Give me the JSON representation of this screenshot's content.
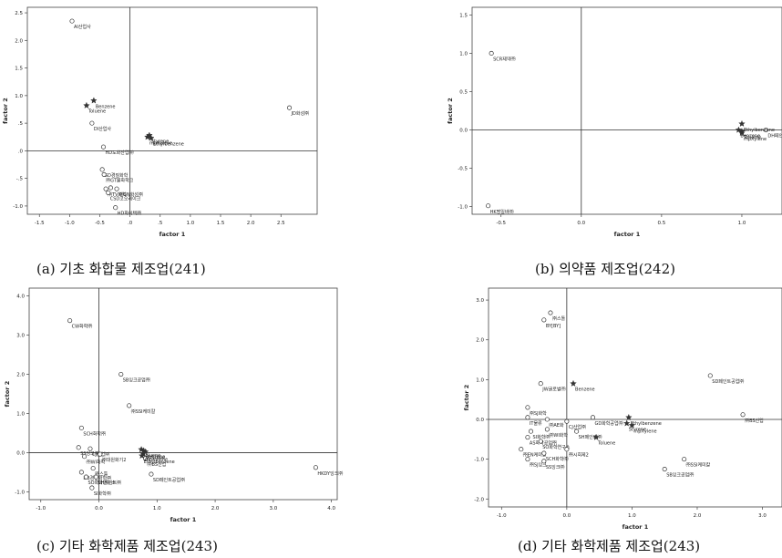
{
  "charts": [
    {
      "id": "a",
      "caption": "(a) 기초 화합물 제조업(241)",
      "chart_data": {
        "type": "scatter",
        "xlabel": "factor 1",
        "ylabel": "factor 2",
        "xlim": [
          -1.7,
          3.1
        ],
        "ylim": [
          -1.15,
          2.6
        ],
        "xticks": [
          -1.5,
          -1.0,
          -0.5,
          0.0,
          0.5,
          1.0,
          1.5,
          2.0,
          2.5
        ],
        "yticks": [
          -1.0,
          -0.5,
          0.0,
          0.5,
          1.0,
          1.5,
          2.0,
          2.5
        ],
        "xtick_labels": [
          "-1.5",
          "-1.0",
          "-0.5",
          ".0",
          ".5",
          "1.0",
          "1.5",
          "2.0",
          "2.5"
        ],
        "ytick_labels": [
          "-1.0",
          "-.5",
          ".0",
          ".5",
          "1.0",
          "1.5",
          "2.0",
          "2.5"
        ],
        "points": [
          {
            "x": -0.96,
            "y": 2.35,
            "marker": "circle",
            "label": "AI산업사"
          },
          {
            "x": -0.63,
            "y": 0.5,
            "marker": "circle",
            "label": "DI산업사"
          },
          {
            "x": -0.44,
            "y": 0.07,
            "marker": "circle",
            "label": "HD도화산업㈜"
          },
          {
            "x": -0.46,
            "y": -0.34,
            "marker": "circle",
            "label": "GD경질화학"
          },
          {
            "x": -0.43,
            "y": -0.43,
            "marker": "circle",
            "label": "㈜GT물화학크"
          },
          {
            "x": -0.4,
            "y": -0.69,
            "marker": "circle",
            "label": "㈜TV화학"
          },
          {
            "x": -0.36,
            "y": -0.76,
            "marker": "circle",
            "label": "CSD코오레이크"
          },
          {
            "x": -0.32,
            "y": -0.67,
            "marker": "circle",
            "label": ""
          },
          {
            "x": -0.22,
            "y": -0.69,
            "marker": "circle",
            "label": "㈜GN화성㈜"
          },
          {
            "x": -0.24,
            "y": -1.03,
            "marker": "circle",
            "label": "HD화이텍㈜"
          },
          {
            "x": 2.64,
            "y": 0.78,
            "marker": "circle",
            "label": "JD화성㈜"
          },
          {
            "x": -0.72,
            "y": 0.82,
            "marker": "star",
            "label": "Toluene"
          },
          {
            "x": -0.6,
            "y": 0.91,
            "marker": "star",
            "label": "Benzene"
          },
          {
            "x": 0.32,
            "y": 0.28,
            "marker": "star",
            "label": "Styrene"
          },
          {
            "x": 0.29,
            "y": 0.25,
            "marker": "star",
            "label": "mpXylene"
          },
          {
            "x": 0.35,
            "y": 0.23,
            "marker": "star",
            "label": "Ethylbenzene"
          }
        ]
      }
    },
    {
      "id": "b",
      "caption": "(b) 의약품 제조업(242)",
      "chart_data": {
        "type": "scatter",
        "xlabel": "factor 1",
        "ylabel": "factor 2",
        "xlim": [
          -0.68,
          1.25
        ],
        "ylim": [
          -1.1,
          1.6
        ],
        "xticks": [
          -0.5,
          0.0,
          0.5,
          1.0
        ],
        "yticks": [
          -1.0,
          -0.5,
          0.0,
          0.5,
          1.0,
          1.5
        ],
        "xtick_labels": [
          "-0.5",
          "0.0",
          "0.5",
          "1.0"
        ],
        "ytick_labels": [
          "-1.0",
          "-0.5",
          "0.0",
          "0.5",
          "1.0",
          "1.5"
        ],
        "points": [
          {
            "x": -0.56,
            "y": 1.0,
            "marker": "circle",
            "label": "SCR제약㈜"
          },
          {
            "x": -0.58,
            "y": -0.99,
            "marker": "circle",
            "label": "HK명일바㈜"
          },
          {
            "x": 1.15,
            "y": 0.0,
            "marker": "circle",
            "label": "DH페인트공업㈜"
          },
          {
            "x": 1.0,
            "y": 0.08,
            "marker": "star",
            "label": "Ethylbenzene"
          },
          {
            "x": 0.98,
            "y": 0.0,
            "marker": "star",
            "label": "Benzene"
          },
          {
            "x": 1.0,
            "y": -0.02,
            "marker": "star",
            "label": "Toluene"
          },
          {
            "x": 1.0,
            "y": -0.04,
            "marker": "star",
            "label": "mpXylene"
          }
        ]
      }
    },
    {
      "id": "c",
      "caption": "(c) 기타 화학제품 제조업(243)",
      "chart_data": {
        "type": "scatter",
        "xlabel": "factor 1",
        "ylabel": "factor 2",
        "xlim": [
          -1.2,
          4.1
        ],
        "ylim": [
          -1.2,
          4.2
        ],
        "xticks": [
          -1.0,
          0.0,
          1.0,
          2.0,
          3.0,
          4.0
        ],
        "yticks": [
          -1.0,
          0.0,
          1.0,
          2.0,
          3.0,
          4.0
        ],
        "xtick_labels": [
          "-1.0",
          "0.0",
          "1.0",
          "2.0",
          "3.0",
          "4.0"
        ],
        "ytick_labels": [
          "-1.0",
          "0.0",
          "1.0",
          "2.0",
          "3.0",
          "4.0"
        ],
        "points": [
          {
            "x": -0.5,
            "y": 3.37,
            "marker": "circle",
            "label": "CW화학㈜"
          },
          {
            "x": 0.38,
            "y": 2.0,
            "marker": "circle",
            "label": "SB잉크공업㈜"
          },
          {
            "x": 0.52,
            "y": 1.2,
            "marker": "circle",
            "label": "㈜SSI케미칼"
          },
          {
            "x": -0.3,
            "y": 0.63,
            "marker": "circle",
            "label": "SCH화학㈜"
          },
          {
            "x": -0.35,
            "y": 0.13,
            "marker": "circle",
            "label": "SS잉크㈜"
          },
          {
            "x": -0.15,
            "y": 0.1,
            "marker": "circle",
            "label": "CJ산업㈜"
          },
          {
            "x": -0.25,
            "y": -0.1,
            "marker": "circle",
            "label": "㈜WI화학"
          },
          {
            "x": 0.02,
            "y": -0.04,
            "marker": "circle",
            "label": "㈜대원화기2"
          },
          {
            "x": -0.1,
            "y": -0.4,
            "marker": "circle",
            "label": "㈜스톨"
          },
          {
            "x": -0.3,
            "y": -0.5,
            "marker": "circle",
            "label": "DB경질화학㈜"
          },
          {
            "x": -0.22,
            "y": -0.62,
            "marker": "circle",
            "label": "SO화학연구소"
          },
          {
            "x": -0.05,
            "y": -0.62,
            "marker": "circle",
            "label": "SH페인트㈜"
          },
          {
            "x": -0.12,
            "y": -0.9,
            "marker": "circle",
            "label": "SI화학㈜"
          },
          {
            "x": 0.9,
            "y": -0.55,
            "marker": "circle",
            "label": "SD페인트공업㈜"
          },
          {
            "x": 0.8,
            "y": -0.15,
            "marker": "circle",
            "label": "㈜BS산업"
          },
          {
            "x": 3.73,
            "y": -0.38,
            "marker": "circle",
            "label": "HKDY잉크㈜"
          },
          {
            "x": 0.73,
            "y": 0.08,
            "marker": "star",
            "label": "Toluene"
          },
          {
            "x": 0.77,
            "y": 0.05,
            "marker": "star",
            "label": "Benzene"
          },
          {
            "x": 0.8,
            "y": 0.02,
            "marker": "star",
            "label": "Styrene"
          },
          {
            "x": 0.76,
            "y": -0.03,
            "marker": "star",
            "label": "mpXylene"
          },
          {
            "x": 0.74,
            "y": -0.08,
            "marker": "star",
            "label": "Ethylbenzene"
          }
        ]
      }
    },
    {
      "id": "d",
      "caption": "(d) 기타 화학제품 제조업(243)",
      "chart_data": {
        "type": "scatter",
        "xlabel": "factor 1",
        "ylabel": "factor 2",
        "xlim": [
          -1.2,
          3.3
        ],
        "ylim": [
          -2.2,
          3.3
        ],
        "xticks": [
          -1.0,
          0.0,
          1.0,
          2.0,
          3.0
        ],
        "yticks": [
          -2.0,
          -1.0,
          0.0,
          1.0,
          2.0,
          3.0
        ],
        "xtick_labels": [
          "-1.0",
          "0.0",
          "1.0",
          "2.0",
          "3.0"
        ],
        "ytick_labels": [
          "-2.0",
          "-1.0",
          "0.0",
          "1.0",
          "2.0",
          "3.0"
        ],
        "points": [
          {
            "x": -0.25,
            "y": 2.68,
            "marker": "circle",
            "label": "㈜스톨"
          },
          {
            "x": -0.35,
            "y": 2.5,
            "marker": "circle",
            "label": "BY[BY]"
          },
          {
            "x": -0.4,
            "y": 0.9,
            "marker": "circle",
            "label": "JW글로벌㈜"
          },
          {
            "x": 0.1,
            "y": 0.9,
            "marker": "star",
            "label": "Benzene"
          },
          {
            "x": -0.6,
            "y": 0.3,
            "marker": "circle",
            "label": "㈜SJ화학"
          },
          {
            "x": -0.6,
            "y": 0.05,
            "marker": "circle",
            "label": "IT물류"
          },
          {
            "x": -0.3,
            "y": 0.0,
            "marker": "circle",
            "label": "㈜AE화"
          },
          {
            "x": -0.55,
            "y": -0.3,
            "marker": "circle",
            "label": "SI화학㈜"
          },
          {
            "x": -0.3,
            "y": -0.25,
            "marker": "circle",
            "label": "㈜WI화학"
          },
          {
            "x": 0.0,
            "y": -0.05,
            "marker": "circle",
            "label": "CJ산업㈜"
          },
          {
            "x": 0.15,
            "y": -0.3,
            "marker": "circle",
            "label": "SH페인트㈜"
          },
          {
            "x": -0.6,
            "y": -0.45,
            "marker": "circle",
            "label": "AS화학공업㈜"
          },
          {
            "x": -0.4,
            "y": -0.55,
            "marker": "circle",
            "label": "SO화학연구소"
          },
          {
            "x": -0.7,
            "y": -0.75,
            "marker": "circle",
            "label": "㈜EN케미칼"
          },
          {
            "x": 0.0,
            "y": -0.75,
            "marker": "circle",
            "label": "㈜시회제2"
          },
          {
            "x": -0.35,
            "y": -0.85,
            "marker": "circle",
            "label": "SCH화학㈜"
          },
          {
            "x": -0.6,
            "y": -1.0,
            "marker": "circle",
            "label": "㈜SJ잉크"
          },
          {
            "x": -0.35,
            "y": -1.05,
            "marker": "circle",
            "label": "SS잉크㈜"
          },
          {
            "x": 0.4,
            "y": 0.05,
            "marker": "circle",
            "label": "GD화학공업㈜"
          },
          {
            "x": 0.95,
            "y": 0.05,
            "marker": "star",
            "label": "Ethylbenzene"
          },
          {
            "x": 0.45,
            "y": -0.45,
            "marker": "star",
            "label": "Toluene"
          },
          {
            "x": 0.92,
            "y": -0.1,
            "marker": "star",
            "label": "Styrene"
          },
          {
            "x": 1.0,
            "y": -0.15,
            "marker": "star",
            "label": "mpXylene"
          },
          {
            "x": 2.2,
            "y": 1.1,
            "marker": "circle",
            "label": "SD페인트공업㈜"
          },
          {
            "x": 2.7,
            "y": 0.12,
            "marker": "circle",
            "label": "㈜BS산업"
          },
          {
            "x": 1.8,
            "y": -1.0,
            "marker": "circle",
            "label": "㈜SSI케미칼"
          },
          {
            "x": 1.5,
            "y": -1.25,
            "marker": "circle",
            "label": "SB잉크공업㈜"
          }
        ]
      }
    }
  ]
}
